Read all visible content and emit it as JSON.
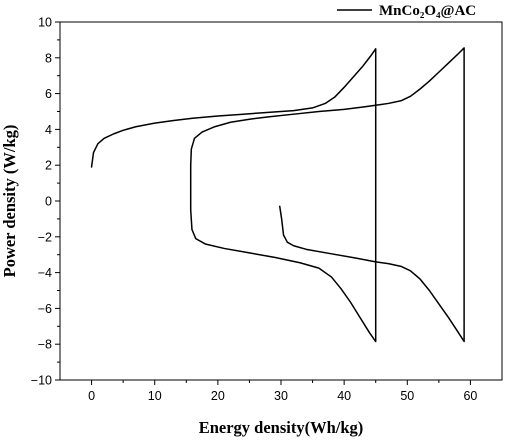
{
  "chart_data": {
    "type": "line",
    "xlabel": "Energy density(Wh/kg)",
    "ylabel": "Power density (W/kg)",
    "xlim": [
      -5,
      65
    ],
    "ylim": [
      -10,
      10
    ],
    "x_ticks": [
      0,
      10,
      20,
      30,
      40,
      50,
      60
    ],
    "y_ticks": [
      -10,
      -8,
      -6,
      -4,
      -2,
      0,
      2,
      4,
      6,
      8,
      10
    ],
    "grid": false,
    "legend_position": "top-right",
    "series": [
      {
        "name": "MnCo₂O₄@AC",
        "color": "#000000",
        "segments": [
          [
            [
              0,
              1.9
            ],
            [
              0.3,
              2.7
            ],
            [
              1,
              3.2
            ],
            [
              2,
              3.5
            ],
            [
              3.5,
              3.75
            ],
            [
              5,
              3.95
            ],
            [
              7,
              4.15
            ],
            [
              10,
              4.35
            ],
            [
              13,
              4.5
            ],
            [
              16,
              4.62
            ],
            [
              20,
              4.75
            ],
            [
              24,
              4.85
            ],
            [
              28,
              4.95
            ],
            [
              32,
              5.05
            ],
            [
              35,
              5.2
            ],
            [
              37,
              5.45
            ],
            [
              38.5,
              5.8
            ],
            [
              40,
              6.35
            ],
            [
              41.5,
              6.95
            ],
            [
              43,
              7.55
            ],
            [
              44.2,
              8.1
            ],
            [
              45,
              8.5
            ],
            [
              45,
              -7.85
            ],
            [
              44,
              -7.35
            ],
            [
              42.5,
              -6.5
            ],
            [
              41,
              -5.65
            ],
            [
              39.5,
              -4.9
            ],
            [
              38,
              -4.25
            ],
            [
              36,
              -3.75
            ],
            [
              33,
              -3.45
            ],
            [
              29,
              -3.15
            ],
            [
              25,
              -2.9
            ],
            [
              21,
              -2.65
            ],
            [
              18,
              -2.4
            ],
            [
              16.5,
              -2.1
            ],
            [
              15.9,
              -1.6
            ],
            [
              15.7,
              -0.5
            ],
            [
              15.7,
              0.8
            ],
            [
              15.7,
              2
            ],
            [
              15.8,
              2.9
            ],
            [
              16.3,
              3.5
            ],
            [
              17.5,
              3.85
            ],
            [
              19.5,
              4.15
            ],
            [
              22,
              4.4
            ],
            [
              25,
              4.57
            ],
            [
              28,
              4.7
            ],
            [
              32,
              4.85
            ],
            [
              36,
              5
            ],
            [
              40,
              5.12
            ],
            [
              43,
              5.25
            ],
            [
              45,
              5.35
            ],
            [
              47,
              5.45
            ],
            [
              49,
              5.6
            ],
            [
              50.5,
              5.85
            ],
            [
              52,
              6.25
            ],
            [
              53.5,
              6.7
            ],
            [
              55,
              7.2
            ],
            [
              56.5,
              7.7
            ],
            [
              58,
              8.2
            ],
            [
              59,
              8.55
            ],
            [
              59,
              -7.85
            ],
            [
              58,
              -7.3
            ],
            [
              56.5,
              -6.5
            ],
            [
              55,
              -5.75
            ],
            [
              53.5,
              -5
            ],
            [
              52,
              -4.35
            ],
            [
              50.5,
              -3.9
            ],
            [
              49,
              -3.65
            ],
            [
              47,
              -3.5
            ],
            [
              45,
              -3.4
            ],
            [
              42,
              -3.2
            ],
            [
              38,
              -2.95
            ],
            [
              34,
              -2.7
            ],
            [
              32,
              -2.5
            ],
            [
              31,
              -2.3
            ],
            [
              30.4,
              -1.9
            ],
            [
              30.1,
              -1
            ],
            [
              29.8,
              -0.3
            ]
          ]
        ]
      }
    ]
  }
}
